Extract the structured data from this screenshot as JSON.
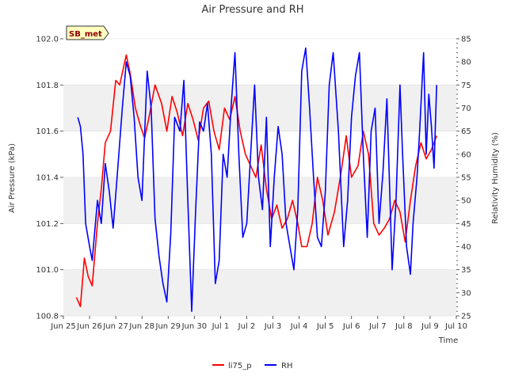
{
  "chart_data": {
    "type": "line",
    "title": "Air Pressure and RH",
    "xlabel": "Time",
    "ylabel": "Air Pressure (kPa)",
    "y2label": "Relativity Humidity (%)",
    "badge": "SB_met",
    "xlim": [
      0,
      15
    ],
    "ylim": [
      100.8,
      102.0
    ],
    "y2lim": [
      25,
      85
    ],
    "x_ticks": [
      {
        "x": 0,
        "label": "Jun 25"
      },
      {
        "x": 1,
        "label": "Jun 26"
      },
      {
        "x": 2,
        "label": "Jun 27"
      },
      {
        "x": 3,
        "label": "Jun 28"
      },
      {
        "x": 4,
        "label": "Jun 29"
      },
      {
        "x": 5,
        "label": "Jun 30"
      },
      {
        "x": 6,
        "label": "Jul 1"
      },
      {
        "x": 7,
        "label": "Jul 2"
      },
      {
        "x": 8,
        "label": "Jul 3"
      },
      {
        "x": 9,
        "label": "Jul 4"
      },
      {
        "x": 10,
        "label": "Jul 5"
      },
      {
        "x": 11,
        "label": "Jul 6"
      },
      {
        "x": 12,
        "label": "Jul 7"
      },
      {
        "x": 13,
        "label": "Jul 8"
      },
      {
        "x": 14,
        "label": "Jul 9"
      },
      {
        "x": 15,
        "label": "Jul 10"
      }
    ],
    "y_ticks": [
      "100.8",
      "101.0",
      "101.2",
      "101.4",
      "101.6",
      "101.8",
      "102.0"
    ],
    "y2_ticks": [
      "25",
      "30",
      "35",
      "40",
      "45",
      "50",
      "55",
      "60",
      "65",
      "70",
      "75",
      "80",
      "85"
    ],
    "series": [
      {
        "name": "li75_p",
        "color": "#ff0000",
        "axis": "left",
        "x": [
          0.5,
          0.65,
          0.8,
          0.95,
          1.1,
          1.3,
          1.45,
          1.6,
          1.8,
          2.0,
          2.15,
          2.4,
          2.55,
          2.75,
          2.95,
          3.1,
          3.25,
          3.5,
          3.75,
          3.95,
          4.15,
          4.35,
          4.55,
          4.75,
          4.95,
          5.15,
          5.35,
          5.55,
          5.75,
          5.95,
          6.15,
          6.35,
          6.55,
          6.75,
          6.95,
          7.15,
          7.35,
          7.55,
          7.75,
          7.95,
          8.15,
          8.35,
          8.55,
          8.75,
          8.95,
          9.1,
          9.3,
          9.5,
          9.7,
          9.9,
          10.1,
          10.35,
          10.6,
          10.8,
          11.0,
          11.25,
          11.45,
          11.65,
          11.85,
          12.05,
          12.25,
          12.45,
          12.65,
          12.85,
          13.05,
          13.25,
          13.45,
          13.65,
          13.85,
          14.05,
          14.25
        ],
        "values": [
          100.88,
          100.84,
          101.05,
          100.97,
          100.93,
          101.2,
          101.35,
          101.55,
          101.6,
          101.82,
          101.8,
          101.93,
          101.85,
          101.7,
          101.62,
          101.57,
          101.65,
          101.8,
          101.72,
          101.6,
          101.75,
          101.68,
          101.58,
          101.72,
          101.65,
          101.56,
          101.7,
          101.73,
          101.6,
          101.52,
          101.7,
          101.65,
          101.75,
          101.6,
          101.5,
          101.45,
          101.4,
          101.54,
          101.35,
          101.22,
          101.28,
          101.18,
          101.22,
          101.3,
          101.2,
          101.1,
          101.1,
          101.2,
          101.4,
          101.3,
          101.15,
          101.25,
          101.42,
          101.58,
          101.4,
          101.45,
          101.6,
          101.5,
          101.2,
          101.15,
          101.18,
          101.22,
          101.3,
          101.25,
          101.12,
          101.3,
          101.45,
          101.55,
          101.48,
          101.52,
          101.58
        ]
      },
      {
        "name": "RH",
        "color": "#0000ff",
        "axis": "right",
        "x": [
          0.55,
          0.65,
          0.75,
          0.85,
          1.0,
          1.1,
          1.3,
          1.45,
          1.6,
          1.75,
          1.9,
          2.05,
          2.25,
          2.4,
          2.55,
          2.7,
          2.85,
          3.0,
          3.2,
          3.35,
          3.5,
          3.65,
          3.8,
          3.95,
          4.1,
          4.25,
          4.45,
          4.6,
          4.75,
          4.9,
          5.05,
          5.2,
          5.35,
          5.5,
          5.65,
          5.8,
          5.95,
          6.1,
          6.25,
          6.4,
          6.55,
          6.7,
          6.85,
          7.0,
          7.15,
          7.3,
          7.45,
          7.6,
          7.75,
          7.9,
          8.05,
          8.2,
          8.35,
          8.5,
          8.65,
          8.8,
          8.95,
          9.1,
          9.25,
          9.4,
          9.55,
          9.7,
          9.85,
          10.0,
          10.15,
          10.3,
          10.5,
          10.7,
          10.85,
          11.0,
          11.15,
          11.3,
          11.45,
          11.6,
          11.75,
          11.9,
          12.05,
          12.2,
          12.35,
          12.55,
          12.7,
          12.85,
          12.95,
          13.1,
          13.25,
          13.35,
          13.5,
          13.6,
          13.75,
          13.85,
          13.95,
          14.05,
          14.15,
          14.25
        ],
        "values": [
          68,
          66,
          60,
          45,
          40,
          37,
          50,
          45,
          58,
          52,
          44,
          55,
          70,
          80,
          77,
          68,
          55,
          50,
          78,
          70,
          46,
          38,
          32,
          28,
          43,
          68,
          65,
          76,
          50,
          26,
          48,
          67,
          65,
          71,
          60,
          32,
          37,
          60,
          55,
          70,
          82,
          60,
          42,
          45,
          60,
          75,
          55,
          48,
          68,
          40,
          55,
          66,
          60,
          45,
          40,
          35,
          48,
          78,
          83,
          70,
          55,
          42,
          40,
          52,
          75,
          82,
          65,
          40,
          50,
          68,
          77,
          82,
          60,
          42,
          65,
          70,
          45,
          56,
          72,
          35,
          50,
          75,
          60,
          40,
          34,
          45,
          55,
          65,
          82,
          60,
          73,
          66,
          57,
          75
        ]
      }
    ],
    "legend": {
      "position": "bottom-center",
      "labels": [
        "li75_p",
        "RH"
      ]
    }
  }
}
